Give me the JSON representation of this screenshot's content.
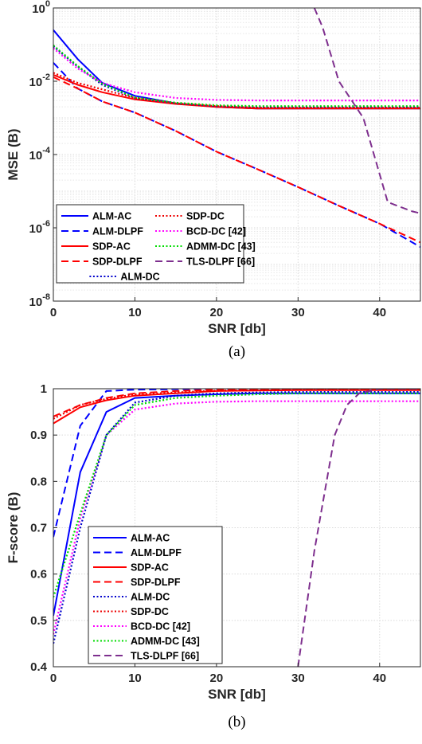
{
  "chart_data": [
    {
      "type": "line",
      "caption": "(a)",
      "xlabel": "SNR [db]",
      "ylabel": "MSE (B)",
      "xlim": [
        0,
        45
      ],
      "ylim_log10": [
        -8,
        0
      ],
      "yscale": "log",
      "grid": true,
      "legend_position": "bottom-left",
      "legend_columns": 2,
      "xticks": [
        "0",
        "10",
        "20",
        "30",
        "40"
      ],
      "xtick_values": [
        0,
        10,
        20,
        30,
        40
      ],
      "yticks": [
        {
          "base": "10",
          "exp": "-8",
          "v": -8
        },
        {
          "base": "10",
          "exp": "-6",
          "v": -6
        },
        {
          "base": "10",
          "exp": "-4",
          "v": -4
        },
        {
          "base": "10",
          "exp": "-2",
          "v": -2
        },
        {
          "base": "10",
          "exp": "0",
          "v": 0
        }
      ],
      "series": [
        {
          "name": "ALM-AC",
          "color": "#0000ff",
          "dash": "solid",
          "x": [
            0,
            3,
            6,
            10,
            15,
            20,
            25,
            30,
            35,
            40,
            45
          ],
          "y": [
            0.25,
            0.04,
            0.009,
            0.004,
            0.0025,
            0.002,
            0.0018,
            0.0018,
            0.0018,
            0.0018,
            0.0018
          ]
        },
        {
          "name": "ALM-DLPF",
          "color": "#0000ff",
          "dash": "dashed",
          "x": [
            0,
            3,
            6,
            10,
            15,
            20,
            25,
            30,
            35,
            40,
            45
          ],
          "y": [
            0.032,
            0.0063,
            0.0028,
            0.0014,
            0.00044,
            0.00012,
            4e-05,
            1.3e-05,
            4e-06,
            1.3e-06,
            3e-07
          ]
        },
        {
          "name": "SDP-AC",
          "color": "#ff0000",
          "dash": "solid",
          "x": [
            0,
            3,
            6,
            10,
            15,
            20,
            25,
            30,
            35,
            40,
            45
          ],
          "y": [
            0.015,
            0.008,
            0.005,
            0.0032,
            0.0024,
            0.002,
            0.0018,
            0.0018,
            0.0018,
            0.0018,
            0.0018
          ]
        },
        {
          "name": "SDP-DLPF",
          "color": "#ff0000",
          "dash": "dashed",
          "x": [
            0,
            3,
            6,
            10,
            15,
            20,
            25,
            30,
            35,
            40,
            45
          ],
          "y": [
            0.013,
            0.0063,
            0.0028,
            0.0014,
            0.00044,
            0.00012,
            4e-05,
            1.3e-05,
            4e-06,
            1.3e-06,
            4e-07
          ]
        },
        {
          "name": "ALM-DC",
          "color": "#0000cc",
          "dash": "dotted",
          "x": [
            0,
            3,
            6,
            10,
            15,
            20,
            25,
            30,
            35,
            40,
            45
          ],
          "y": [
            0.09,
            0.025,
            0.008,
            0.0035,
            0.0025,
            0.0021,
            0.002,
            0.002,
            0.002,
            0.002,
            0.002
          ]
        },
        {
          "name": "SDP-DC",
          "color": "#ee0000",
          "dash": "dotted",
          "x": [
            0,
            3,
            6,
            10,
            15,
            20,
            25,
            30,
            35,
            40,
            45
          ],
          "y": [
            0.017,
            0.009,
            0.006,
            0.0035,
            0.0025,
            0.0021,
            0.0019,
            0.0019,
            0.0019,
            0.0019,
            0.0019
          ]
        },
        {
          "name": "BCD-DC [42]",
          "color": "#ff00ff",
          "dash": "dotted",
          "x": [
            0,
            3,
            6,
            10,
            15,
            20,
            25,
            30,
            35,
            40,
            45
          ],
          "y": [
            0.08,
            0.022,
            0.009,
            0.005,
            0.0035,
            0.0031,
            0.003,
            0.003,
            0.003,
            0.003,
            0.003
          ]
        },
        {
          "name": "ADMM-DC [43]",
          "color": "#00dd00",
          "dash": "dotted",
          "x": [
            0,
            3,
            6,
            10,
            15,
            20,
            25,
            30,
            35,
            40,
            45
          ],
          "y": [
            0.095,
            0.026,
            0.0085,
            0.0036,
            0.0026,
            0.0022,
            0.0021,
            0.0021,
            0.0021,
            0.0021,
            0.0021
          ]
        },
        {
          "name": "TLS-DLPF [66]",
          "color": "#7e2f8e",
          "dash": "dashed",
          "x": [
            32,
            33,
            35,
            38,
            41,
            44,
            45
          ],
          "y": [
            1.0,
            0.3,
            0.01,
            0.001,
            5e-06,
            2.8e-06,
            2.5e-06
          ]
        }
      ]
    },
    {
      "type": "line",
      "caption": "(b)",
      "xlabel": "SNR [db]",
      "ylabel": "F-score (B)",
      "xlim": [
        0,
        45
      ],
      "ylim": [
        0.4,
        1
      ],
      "grid": true,
      "legend_position": "bottom-left",
      "legend_columns": 1,
      "xticks": [
        "0",
        "10",
        "20",
        "30",
        "40"
      ],
      "xtick_values": [
        0,
        10,
        20,
        30,
        40
      ],
      "yticks": [
        "0.4",
        "0.5",
        "0.6",
        "0.7",
        "0.8",
        "0.9",
        "1"
      ],
      "ytick_values": [
        0.4,
        0.5,
        0.6,
        0.7,
        0.8,
        0.9,
        1.0
      ],
      "series": [
        {
          "name": "ALM-AC",
          "color": "#0000ff",
          "dash": "solid",
          "x": [
            0,
            3.3,
            6.5,
            10,
            15,
            20,
            25,
            30,
            35,
            40,
            45
          ],
          "y": [
            0.51,
            0.82,
            0.95,
            0.98,
            0.985,
            0.988,
            0.99,
            0.99,
            0.99,
            0.99,
            0.99
          ]
        },
        {
          "name": "ALM-DLPF",
          "color": "#0000ff",
          "dash": "dashed",
          "x": [
            0,
            3.3,
            6.5,
            10,
            15,
            20,
            25,
            30,
            35,
            40,
            45
          ],
          "y": [
            0.68,
            0.92,
            0.995,
            0.998,
            0.999,
            1.0,
            1.0,
            1.0,
            1.0,
            1.0,
            1.0
          ]
        },
        {
          "name": "SDP-AC",
          "color": "#ff0000",
          "dash": "solid",
          "x": [
            0,
            3.3,
            6.5,
            10,
            15,
            20,
            25,
            30,
            35,
            40,
            45
          ],
          "y": [
            0.925,
            0.96,
            0.975,
            0.985,
            0.99,
            0.995,
            0.996,
            0.997,
            0.997,
            0.997,
            0.997
          ]
        },
        {
          "name": "SDP-DLPF",
          "color": "#ff0000",
          "dash": "dashed",
          "x": [
            0,
            3.3,
            6.5,
            10,
            15,
            20,
            25,
            30,
            35,
            40,
            45
          ],
          "y": [
            0.94,
            0.965,
            0.98,
            0.99,
            0.995,
            0.998,
            0.999,
            0.999,
            0.999,
            0.999,
            0.999
          ]
        },
        {
          "name": "ALM-DC",
          "color": "#0000cc",
          "dash": "dotted",
          "x": [
            0,
            3.3,
            6.5,
            10,
            15,
            20,
            25,
            30,
            35,
            40,
            45
          ],
          "y": [
            0.45,
            0.7,
            0.9,
            0.97,
            0.985,
            0.99,
            0.992,
            0.993,
            0.993,
            0.993,
            0.993
          ]
        },
        {
          "name": "SDP-DC",
          "color": "#ee0000",
          "dash": "dotted",
          "x": [
            0,
            3.3,
            6.5,
            10,
            15,
            20,
            25,
            30,
            35,
            40,
            45
          ],
          "y": [
            0.935,
            0.965,
            0.978,
            0.988,
            0.992,
            0.996,
            0.997,
            0.998,
            0.998,
            0.998,
            0.998
          ]
        },
        {
          "name": "BCD-DC [42]",
          "color": "#ff00ff",
          "dash": "dotted",
          "x": [
            0,
            3.3,
            6.5,
            10,
            15,
            20,
            25,
            30,
            35,
            40,
            45
          ],
          "y": [
            0.47,
            0.72,
            0.9,
            0.955,
            0.968,
            0.972,
            0.973,
            0.973,
            0.973,
            0.973,
            0.973
          ]
        },
        {
          "name": "ADMM-DC [43]",
          "color": "#00dd00",
          "dash": "dotted",
          "x": [
            0,
            3.3,
            6.5,
            10,
            15,
            20,
            25,
            30,
            35,
            40,
            45
          ],
          "y": [
            0.55,
            0.73,
            0.9,
            0.965,
            0.98,
            0.985,
            0.988,
            0.99,
            0.99,
            0.99,
            0.99
          ]
        },
        {
          "name": "TLS-DLPF [66]",
          "color": "#7e2f8e",
          "dash": "dashed",
          "x": [
            30,
            32,
            34.5,
            36,
            37.5,
            40,
            45
          ],
          "y": [
            0.4,
            0.65,
            0.9,
            0.965,
            0.99,
            1.0,
            1.0
          ]
        }
      ]
    }
  ]
}
